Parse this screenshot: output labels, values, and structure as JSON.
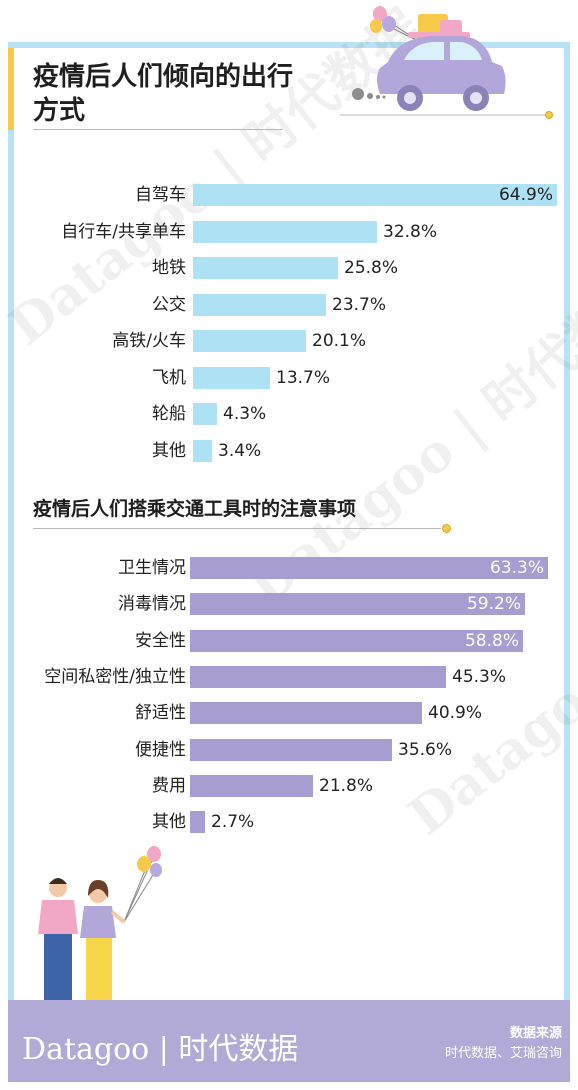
{
  "watermark": {
    "text": "Datagoo | 时代数据"
  },
  "chart_data": [
    {
      "type": "bar",
      "orientation": "horizontal",
      "title": "疫情后人们倾向的出行方式",
      "categories": [
        "自驾车",
        "自行车/共享单车",
        "地铁",
        "公交",
        "高铁/火车",
        "飞机",
        "轮船",
        "其他"
      ],
      "values": [
        64.9,
        32.8,
        25.8,
        23.7,
        20.1,
        13.7,
        4.3,
        3.4
      ],
      "value_labels": [
        "64.9%",
        "32.8%",
        "25.8%",
        "23.7%",
        "20.1%",
        "13.7%",
        "4.3%",
        "3.4%"
      ],
      "unit": "%",
      "color": "#aee1f4",
      "xlim": [
        0,
        65
      ]
    },
    {
      "type": "bar",
      "orientation": "horizontal",
      "title": "疫情后人们搭乘交通工具时的注意事项",
      "categories": [
        "卫生情况",
        "消毒情况",
        "安全性",
        "空间私密性/独立性",
        "舒适性",
        "便捷性",
        "费用",
        "其他"
      ],
      "values": [
        63.3,
        59.2,
        58.8,
        45.3,
        40.9,
        35.6,
        21.8,
        2.7
      ],
      "value_labels": [
        "63.3%",
        "59.2%",
        "58.8%",
        "45.3%",
        "40.9%",
        "35.6%",
        "21.8%",
        "2.7%"
      ],
      "unit": "%",
      "color": "#a79dd0",
      "xlim": [
        0,
        65
      ]
    }
  ],
  "footer": {
    "logo": "Datagoo | 时代数据",
    "source_title": "数据来源",
    "source": "时代数据、艾瑞咨询"
  },
  "colors": {
    "frame": "#b9e3f4",
    "accent": "#f7c948",
    "footer": "#b1aad6",
    "bar1": "#aee1f4",
    "bar2": "#a79dd0"
  },
  "icons": [
    "car-icon",
    "balloons-icon",
    "couple-illustration"
  ]
}
